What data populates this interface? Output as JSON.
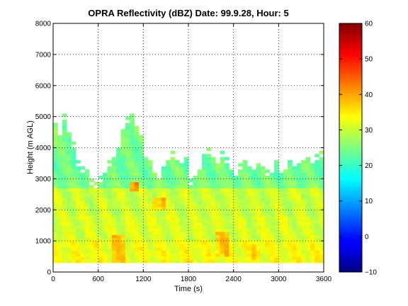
{
  "chart_data": {
    "type": "heatmap",
    "title": "OPRA Reflectivity (dBZ)  Date: 99.9.28, Hour: 5",
    "xlabel": "Time (s)",
    "ylabel": "Height (m AGL)",
    "xlim": [
      0,
      3600
    ],
    "ylim": [
      0,
      8000
    ],
    "xticks": [
      0,
      600,
      1200,
      1800,
      2400,
      3000,
      3600
    ],
    "yticks": [
      0,
      1000,
      2000,
      3000,
      4000,
      5000,
      6000,
      7000,
      8000
    ],
    "grid": true,
    "colorbar": {
      "range": [
        -10,
        60
      ],
      "ticks": [
        -10,
        0,
        10,
        20,
        30,
        40,
        50,
        60
      ],
      "colormap": "jet"
    },
    "data_bottom_height": 300,
    "time_step": 60,
    "echo_top": [
      [
        0,
        5000
      ],
      [
        60,
        4600
      ],
      [
        120,
        5100
      ],
      [
        180,
        4500
      ],
      [
        240,
        4200
      ],
      [
        300,
        3600
      ],
      [
        360,
        3400
      ],
      [
        420,
        3300
      ],
      [
        480,
        3000
      ],
      [
        540,
        2900
      ],
      [
        600,
        3100
      ],
      [
        660,
        3300
      ],
      [
        720,
        3600
      ],
      [
        780,
        3700
      ],
      [
        840,
        4200
      ],
      [
        900,
        4800
      ],
      [
        960,
        5000
      ],
      [
        1020,
        5100
      ],
      [
        1080,
        4900
      ],
      [
        1140,
        4400
      ],
      [
        1200,
        3800
      ],
      [
        1260,
        3600
      ],
      [
        1320,
        3300
      ],
      [
        1380,
        3200
      ],
      [
        1440,
        3400
      ],
      [
        1500,
        3700
      ],
      [
        1560,
        3900
      ],
      [
        1620,
        3600
      ],
      [
        1680,
        3500
      ],
      [
        1740,
        3700
      ],
      [
        1800,
        3000
      ],
      [
        1860,
        3200
      ],
      [
        1920,
        3500
      ],
      [
        1980,
        3900
      ],
      [
        2040,
        4000
      ],
      [
        2100,
        3800
      ],
      [
        2160,
        3600
      ],
      [
        2220,
        3900
      ],
      [
        2280,
        3700
      ],
      [
        2340,
        3400
      ],
      [
        2400,
        3300
      ],
      [
        2460,
        3500
      ],
      [
        2520,
        3600
      ],
      [
        2580,
        3400
      ],
      [
        2640,
        3300
      ],
      [
        2700,
        3500
      ],
      [
        2760,
        3400
      ],
      [
        2820,
        3300
      ],
      [
        2880,
        3400
      ],
      [
        2940,
        3600
      ],
      [
        3000,
        3400
      ],
      [
        3060,
        3500
      ],
      [
        3120,
        3600
      ],
      [
        3180,
        3400
      ],
      [
        3240,
        3500
      ],
      [
        3300,
        3600
      ],
      [
        3360,
        3700
      ],
      [
        3420,
        3600
      ],
      [
        3480,
        3800
      ],
      [
        3540,
        3900
      ]
    ],
    "layers": [
      {
        "height": [
          300,
          1000
        ],
        "dbz": 33
      },
      {
        "height": [
          1000,
          1800
        ],
        "dbz": 31
      },
      {
        "height": [
          1800,
          2700
        ],
        "dbz": 30
      },
      {
        "height": [
          2700,
          3000
        ],
        "dbz": 25
      },
      {
        "height": [
          3000,
          4000
        ],
        "dbz": 24
      },
      {
        "height": [
          4000,
          5300
        ],
        "dbz": 25
      }
    ],
    "high_cores": [
      {
        "time": [
          1020,
          1140
        ],
        "height": [
          2600,
          2900
        ],
        "dbz": 40
      },
      {
        "time": [
          1320,
          1500
        ],
        "height": [
          2000,
          2400
        ],
        "dbz": 38
      },
      {
        "time": [
          780,
          960
        ],
        "height": [
          300,
          1200
        ],
        "dbz": 37
      },
      {
        "time": [
          2160,
          2340
        ],
        "height": [
          500,
          1300
        ],
        "dbz": 37
      },
      {
        "time": [
          2640,
          2760
        ],
        "height": [
          400,
          1000
        ],
        "dbz": 36
      }
    ]
  }
}
